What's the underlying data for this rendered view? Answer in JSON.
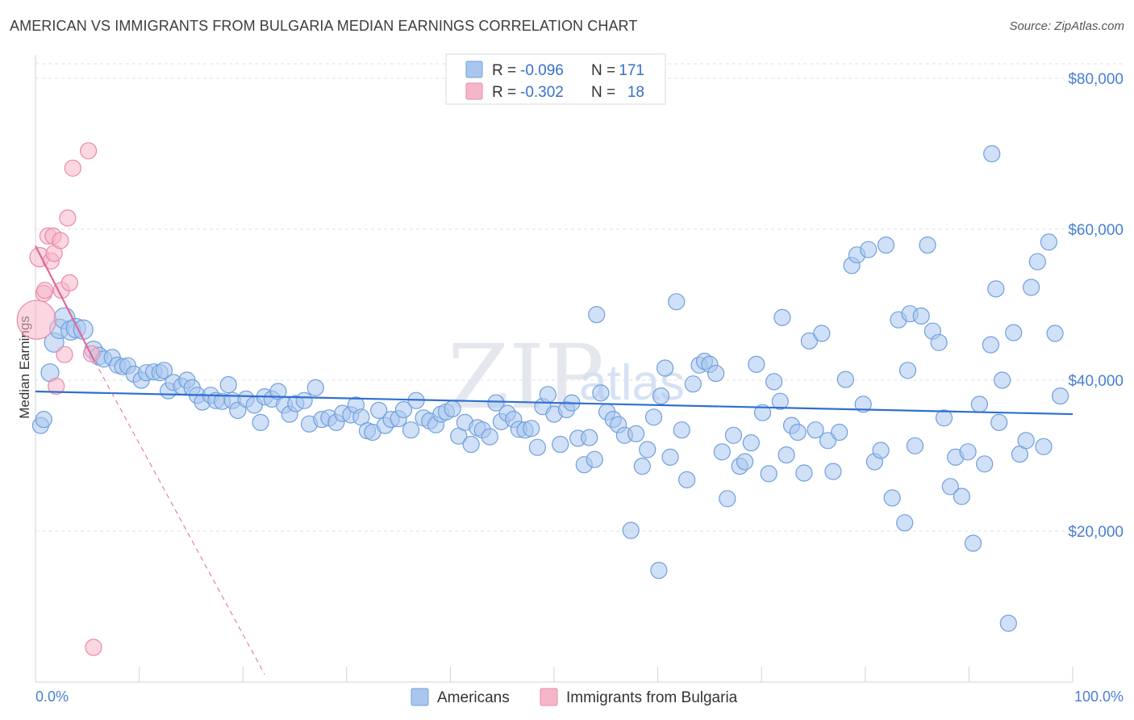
{
  "header": {
    "title": "AMERICAN VS IMMIGRANTS FROM BULGARIA MEDIAN EARNINGS CORRELATION CHART",
    "source": "Source: ZipAtlas.com"
  },
  "watermark": {
    "zip": "ZIP",
    "atlas": "atlas"
  },
  "legend_box": {
    "rows": [
      {
        "r_label": "R = ",
        "r_value": "-0.096",
        "n_label": "N = ",
        "n_value": "171",
        "color": "#a9c6ee",
        "stroke": "#6f9fde"
      },
      {
        "r_label": "R = ",
        "r_value": "-0.302",
        "n_label": "N = ",
        "n_value": "18",
        "color": "#f6b6c9",
        "stroke": "#e98aa8"
      }
    ]
  },
  "bottom_legend": {
    "items": [
      {
        "label": "Americans",
        "color": "#a9c6ee",
        "stroke": "#6f9fde"
      },
      {
        "label": "Immigrants from Bulgaria",
        "color": "#f6b6c9",
        "stroke": "#e98aa8"
      }
    ]
  },
  "chart_data": {
    "type": "scatter",
    "title": "AMERICAN VS IMMIGRANTS FROM BULGARIA MEDIAN EARNINGS CORRELATION CHART",
    "xlabel": "",
    "ylabel": "Median Earnings",
    "xlim": [
      0,
      100
    ],
    "ylim": [
      0,
      80000
    ],
    "x_tick_labels": [
      "0.0%",
      "100.0%"
    ],
    "y_ticks": [
      20000,
      40000,
      60000,
      80000
    ],
    "y_tick_labels": [
      "$20,000",
      "$40,000",
      "$60,000",
      "$80,000"
    ],
    "grid": true,
    "legend_position": "top-center",
    "series": [
      {
        "name": "Americans",
        "color": "#a9c6ee",
        "stroke": "#6f9fde",
        "trend": {
          "x": [
            0,
            100
          ],
          "y": [
            38500,
            35500
          ],
          "color": "#2f6fd0"
        },
        "points": [
          [
            0.5,
            34000,
            10
          ],
          [
            0.8,
            34800,
            10
          ],
          [
            1.4,
            41000,
            11
          ],
          [
            1.8,
            45000,
            12
          ],
          [
            2.3,
            46800,
            12
          ],
          [
            2.8,
            48200,
            13
          ],
          [
            3.4,
            46600,
            12
          ],
          [
            3.9,
            46900,
            12
          ],
          [
            4.6,
            46700,
            12
          ],
          [
            5.6,
            44000,
            11
          ],
          [
            6.1,
            43200,
            11
          ],
          [
            6.6,
            42800,
            10
          ],
          [
            7.4,
            43000,
            10
          ],
          [
            7.9,
            42000,
            10
          ],
          [
            8.4,
            41800,
            10
          ],
          [
            8.9,
            41900,
            10
          ],
          [
            9.5,
            40800,
            10
          ],
          [
            10.2,
            40000,
            10
          ],
          [
            10.7,
            41000,
            10
          ],
          [
            11.4,
            41100,
            10
          ],
          [
            12.0,
            41000,
            10
          ],
          [
            12.4,
            41300,
            10
          ],
          [
            12.8,
            38600,
            10
          ],
          [
            13.3,
            39700,
            10
          ],
          [
            14.1,
            39200,
            10
          ],
          [
            14.6,
            40000,
            10
          ],
          [
            15.1,
            39000,
            10
          ],
          [
            15.6,
            38000,
            10
          ],
          [
            16.1,
            37100,
            10
          ],
          [
            16.9,
            38000,
            10
          ],
          [
            17.4,
            37300,
            10
          ],
          [
            18.0,
            37200,
            10
          ],
          [
            18.6,
            39400,
            10
          ],
          [
            19.0,
            37300,
            10
          ],
          [
            19.5,
            36000,
            10
          ],
          [
            20.3,
            37500,
            10
          ],
          [
            21.1,
            36700,
            10
          ],
          [
            21.7,
            34400,
            10
          ],
          [
            22.1,
            37800,
            10
          ],
          [
            22.8,
            37500,
            10
          ],
          [
            23.4,
            38500,
            10
          ],
          [
            24.0,
            36700,
            10
          ],
          [
            24.5,
            35500,
            10
          ],
          [
            25.1,
            36900,
            10
          ],
          [
            25.9,
            37300,
            10
          ],
          [
            26.4,
            34200,
            10
          ],
          [
            27.0,
            39000,
            10
          ],
          [
            27.6,
            34800,
            10
          ],
          [
            28.3,
            35000,
            10
          ],
          [
            29.0,
            34400,
            10
          ],
          [
            29.6,
            35600,
            10
          ],
          [
            30.4,
            35400,
            10
          ],
          [
            30.9,
            36700,
            10
          ],
          [
            31.4,
            35100,
            10
          ],
          [
            32.0,
            33300,
            10
          ],
          [
            32.5,
            33100,
            10
          ],
          [
            33.1,
            36000,
            10
          ],
          [
            33.7,
            34000,
            10
          ],
          [
            34.3,
            34800,
            10
          ],
          [
            35.0,
            34900,
            10
          ],
          [
            35.5,
            36100,
            10
          ],
          [
            36.2,
            33400,
            10
          ],
          [
            36.7,
            37300,
            10
          ],
          [
            37.4,
            35000,
            10
          ],
          [
            38.0,
            34600,
            10
          ],
          [
            38.6,
            34100,
            10
          ],
          [
            39.1,
            35500,
            10
          ],
          [
            39.6,
            35800,
            10
          ],
          [
            40.2,
            36200,
            10
          ],
          [
            40.8,
            32600,
            10
          ],
          [
            41.4,
            34400,
            10
          ],
          [
            42.0,
            31500,
            10
          ],
          [
            42.6,
            33700,
            10
          ],
          [
            43.1,
            33400,
            10
          ],
          [
            43.8,
            32500,
            10
          ],
          [
            44.4,
            37000,
            10
          ],
          [
            44.9,
            34500,
            10
          ],
          [
            45.5,
            35600,
            10
          ],
          [
            46.1,
            34800,
            10
          ],
          [
            46.6,
            33500,
            10
          ],
          [
            47.2,
            33400,
            10
          ],
          [
            47.8,
            33600,
            10
          ],
          [
            48.4,
            31100,
            10
          ],
          [
            48.9,
            36500,
            10
          ],
          [
            49.4,
            38100,
            10
          ],
          [
            50.0,
            35500,
            10
          ],
          [
            50.6,
            31500,
            10
          ],
          [
            51.2,
            36100,
            10
          ],
          [
            51.7,
            37000,
            10
          ],
          [
            52.3,
            32300,
            10
          ],
          [
            52.9,
            28800,
            10
          ],
          [
            53.4,
            32400,
            10
          ],
          [
            53.9,
            29500,
            10
          ],
          [
            54.5,
            38300,
            10
          ],
          [
            55.1,
            35800,
            10
          ],
          [
            55.7,
            34800,
            10
          ],
          [
            56.2,
            34100,
            10
          ],
          [
            56.8,
            32700,
            10
          ],
          [
            57.4,
            20100,
            10
          ],
          [
            57.9,
            32900,
            10
          ],
          [
            58.5,
            28600,
            10
          ],
          [
            59.0,
            30800,
            10
          ],
          [
            59.6,
            35100,
            10
          ],
          [
            60.1,
            14800,
            10
          ],
          [
            60.7,
            41600,
            10
          ],
          [
            61.2,
            29800,
            10
          ],
          [
            61.8,
            50400,
            10
          ],
          [
            62.3,
            33400,
            10
          ],
          [
            62.8,
            26800,
            10
          ],
          [
            63.4,
            39500,
            10
          ],
          [
            64.0,
            42000,
            10
          ],
          [
            64.5,
            42500,
            10
          ],
          [
            65.0,
            42100,
            10
          ],
          [
            65.6,
            40900,
            10
          ],
          [
            66.2,
            30500,
            10
          ],
          [
            66.7,
            24300,
            10
          ],
          [
            67.3,
            32700,
            10
          ],
          [
            67.9,
            28600,
            10
          ],
          [
            68.4,
            29200,
            10
          ],
          [
            69.0,
            31700,
            10
          ],
          [
            69.5,
            42100,
            10
          ],
          [
            70.1,
            35700,
            10
          ],
          [
            70.7,
            27600,
            10
          ],
          [
            71.2,
            39800,
            10
          ],
          [
            71.8,
            37200,
            10
          ],
          [
            72.4,
            30100,
            10
          ],
          [
            72.9,
            34000,
            10
          ],
          [
            73.5,
            33100,
            10
          ],
          [
            74.1,
            27700,
            10
          ],
          [
            74.6,
            45200,
            10
          ],
          [
            75.2,
            33400,
            10
          ],
          [
            75.8,
            46200,
            10
          ],
          [
            76.4,
            32000,
            10
          ],
          [
            76.9,
            27900,
            10
          ],
          [
            77.5,
            33100,
            10
          ],
          [
            78.1,
            40100,
            10
          ],
          [
            78.7,
            55200,
            10
          ],
          [
            79.2,
            56600,
            10
          ],
          [
            79.8,
            36800,
            10
          ],
          [
            80.3,
            57300,
            10
          ],
          [
            80.9,
            29200,
            10
          ],
          [
            81.5,
            30700,
            10
          ],
          [
            82.0,
            57900,
            10
          ],
          [
            82.6,
            24400,
            10
          ],
          [
            83.2,
            48000,
            10
          ],
          [
            83.8,
            21100,
            10
          ],
          [
            84.3,
            48800,
            10
          ],
          [
            84.8,
            31300,
            10
          ],
          [
            85.4,
            48500,
            10
          ],
          [
            86.0,
            57900,
            10
          ],
          [
            86.5,
            46500,
            10
          ],
          [
            87.1,
            45000,
            10
          ],
          [
            87.6,
            35000,
            10
          ],
          [
            88.2,
            25900,
            10
          ],
          [
            88.7,
            29800,
            10
          ],
          [
            89.3,
            24600,
            10
          ],
          [
            89.9,
            30500,
            10
          ],
          [
            90.4,
            18400,
            10
          ],
          [
            91.0,
            36800,
            10
          ],
          [
            91.5,
            28900,
            10
          ],
          [
            92.1,
            44700,
            10
          ],
          [
            92.6,
            52100,
            10
          ],
          [
            93.2,
            40000,
            10
          ],
          [
            93.8,
            7800,
            10
          ],
          [
            94.3,
            46300,
            10
          ],
          [
            94.9,
            30200,
            10
          ],
          [
            95.5,
            32000,
            10
          ],
          [
            96.0,
            52300,
            10
          ],
          [
            96.6,
            55700,
            10
          ],
          [
            97.2,
            31200,
            10
          ],
          [
            97.7,
            58300,
            10
          ],
          [
            98.3,
            46200,
            10
          ],
          [
            98.8,
            37900,
            10
          ],
          [
            92.2,
            70000,
            10
          ],
          [
            92.9,
            34400,
            10
          ],
          [
            84.1,
            41300,
            10
          ],
          [
            72.0,
            48300,
            10
          ],
          [
            60.3,
            37900,
            10
          ],
          [
            54.1,
            48700,
            10
          ]
        ]
      },
      {
        "name": "Immigrants from Bulgaria",
        "color": "#f6b6c9",
        "stroke": "#e98aa8",
        "trend": {
          "x": [
            0,
            5.7
          ],
          "y": [
            57800,
            42500
          ],
          "dashed_to": [
            22.1,
            1000
          ],
          "color": "#e2679a"
        },
        "points": [
          [
            0.1,
            48000,
            24
          ],
          [
            0.4,
            56300,
            12
          ],
          [
            0.8,
            51500,
            10
          ],
          [
            0.9,
            51900,
            10
          ],
          [
            1.2,
            59100,
            10
          ],
          [
            1.5,
            55800,
            10
          ],
          [
            1.7,
            59100,
            10
          ],
          [
            1.8,
            56800,
            10
          ],
          [
            2.0,
            39200,
            10
          ],
          [
            2.4,
            58500,
            10
          ],
          [
            2.5,
            51900,
            10
          ],
          [
            2.8,
            43400,
            10
          ],
          [
            3.1,
            61500,
            10
          ],
          [
            3.3,
            52900,
            10
          ],
          [
            3.6,
            68100,
            10
          ],
          [
            5.1,
            70400,
            10
          ],
          [
            5.4,
            43500,
            10
          ],
          [
            5.6,
            4600,
            10
          ]
        ]
      }
    ]
  }
}
